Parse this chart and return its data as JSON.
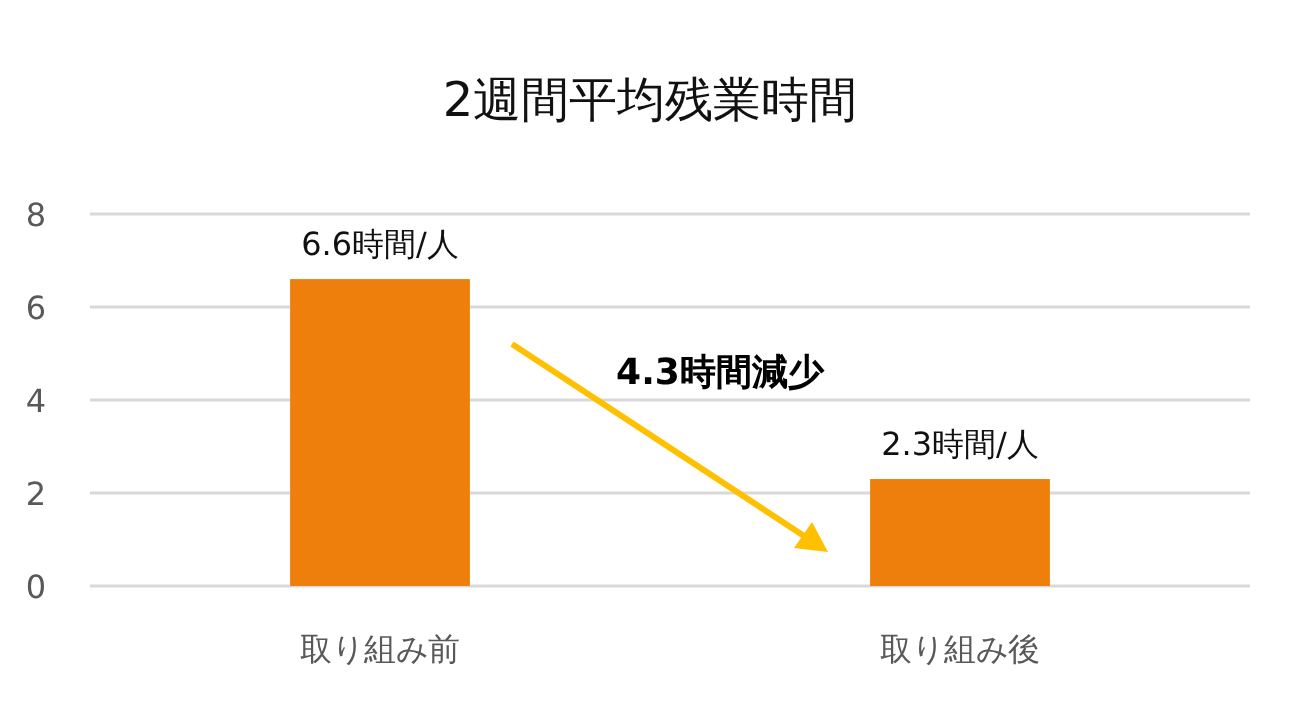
{
  "chart_data": {
    "type": "bar",
    "title": "2週間平均残業時間",
    "categories": [
      "取り組み前",
      "取り組み後"
    ],
    "values": [
      6.6,
      2.3
    ],
    "color": "#ef7f0c",
    "value_labels": [
      "6.6時間/人",
      "2.3時間/人"
    ],
    "ylim": [
      0,
      8
    ],
    "yticks": [
      0,
      2,
      4,
      6,
      8
    ],
    "grid": "y",
    "annotations": [
      "4.3時間減少"
    ]
  }
}
